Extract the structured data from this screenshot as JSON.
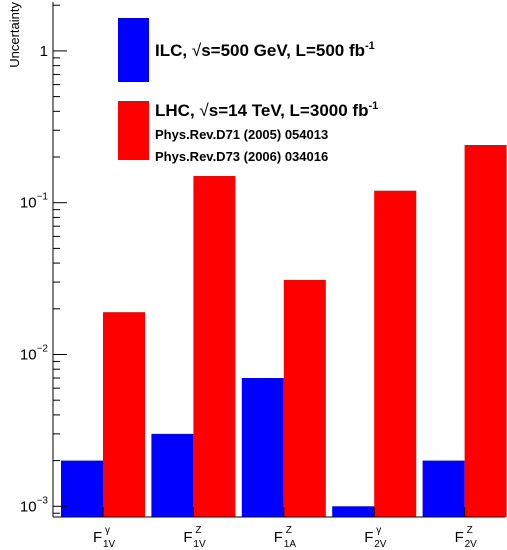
{
  "chart_data": {
    "type": "bar",
    "ylabel": "Uncertainty",
    "yscale": "log",
    "ylim": [
      0.00085,
      2.1
    ],
    "y_ticks": [
      {
        "base": "1",
        "exp": ""
      },
      {
        "base": "10",
        "exp": "−1"
      },
      {
        "base": "10",
        "exp": "−2"
      },
      {
        "base": "10",
        "exp": "−3"
      }
    ],
    "categories": [
      {
        "main": "F",
        "sup": "γ",
        "sub": "1V"
      },
      {
        "main": "F",
        "sup": "Z",
        "sub": "1V"
      },
      {
        "main": "F",
        "sup": "Z",
        "sub": "1A"
      },
      {
        "main": "F",
        "sup": "γ",
        "sub": "2V"
      },
      {
        "main": "F",
        "sup": "Z",
        "sub": "2V"
      }
    ],
    "series": [
      {
        "key": "ilc",
        "color": "#0000ff",
        "values": [
          0.002,
          0.003,
          0.007,
          0.001,
          0.002
        ]
      },
      {
        "key": "lhc",
        "color": "#ff0000",
        "values": [
          0.019,
          0.15,
          0.031,
          0.12,
          0.24
        ]
      }
    ],
    "legend": {
      "ilc": {
        "pre": "ILC,  ",
        "rad": "√",
        "mid": "s=500 GeV, L=500 fb",
        "sup": "-1"
      },
      "lhc": {
        "pre": "LHC,  ",
        "rad": "√",
        "mid": "s=14 TeV, L=3000 fb",
        "sup": "-1"
      },
      "refs": [
        "Phys.Rev.D71 (2005) 054013",
        "Phys.Rev.D73 (2006) 034016"
      ],
      "position": "top-left"
    },
    "grid": false
  }
}
